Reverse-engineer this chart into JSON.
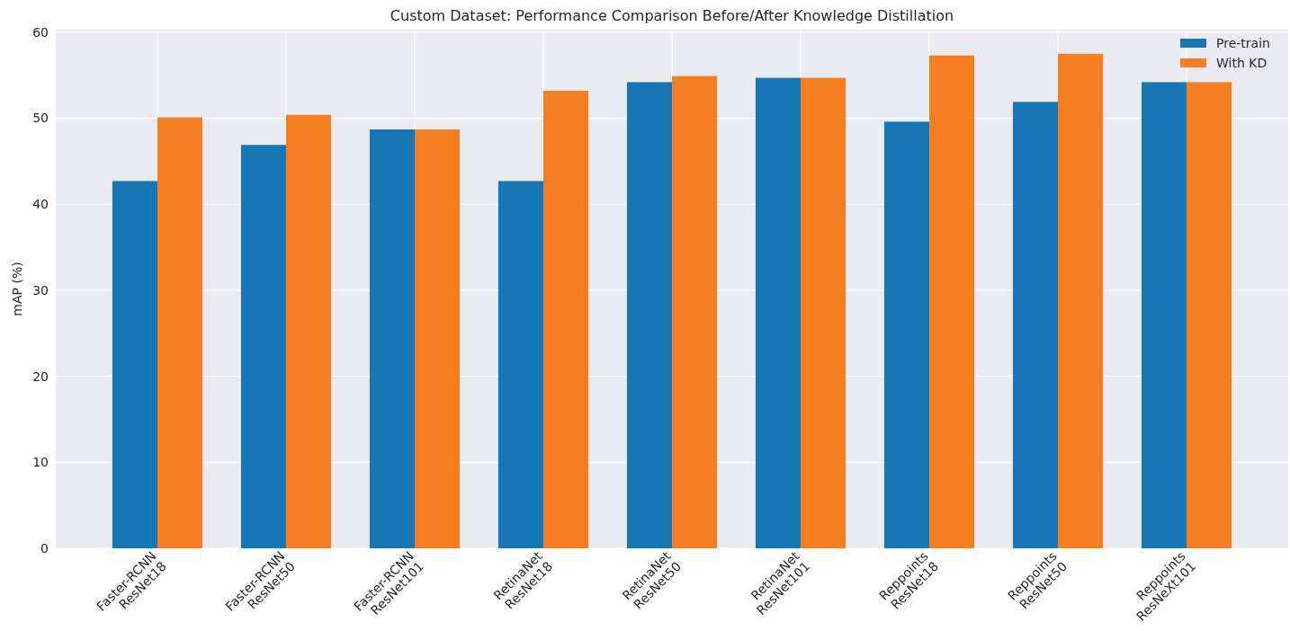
{
  "chart_data": {
    "type": "bar",
    "title": "Custom Dataset: Performance Comparison Before/After Knowledge Distillation",
    "ylabel": "mAP (%)",
    "categories": [
      "Faster-RCNN\nResNet18",
      "Faster-RCNN\nResNet50",
      "Faster-RCNN\nResNet101",
      "RetinaNet\nResNet18",
      "RetinaNet\nResNet50",
      "RetinaNet\nResNet101",
      "Reppoints\nResNet18",
      "Reppoints\nResNet50",
      "Reppoints\nResNeXt101"
    ],
    "series": [
      {
        "name": "Pre-train",
        "color": "#1777b4",
        "values": [
          42.7,
          46.9,
          48.7,
          42.7,
          54.2,
          54.7,
          49.6,
          51.9,
          54.2
        ]
      },
      {
        "name": "With KD",
        "color": "#f57f20",
        "values": [
          50.1,
          50.4,
          48.7,
          53.2,
          54.9,
          54.7,
          57.3,
          57.5,
          54.2
        ]
      }
    ],
    "ylim": [
      0,
      60.3
    ],
    "yticks": [
      0,
      10,
      20,
      30,
      40,
      50,
      60
    ],
    "grid": true,
    "legend": "top right"
  }
}
